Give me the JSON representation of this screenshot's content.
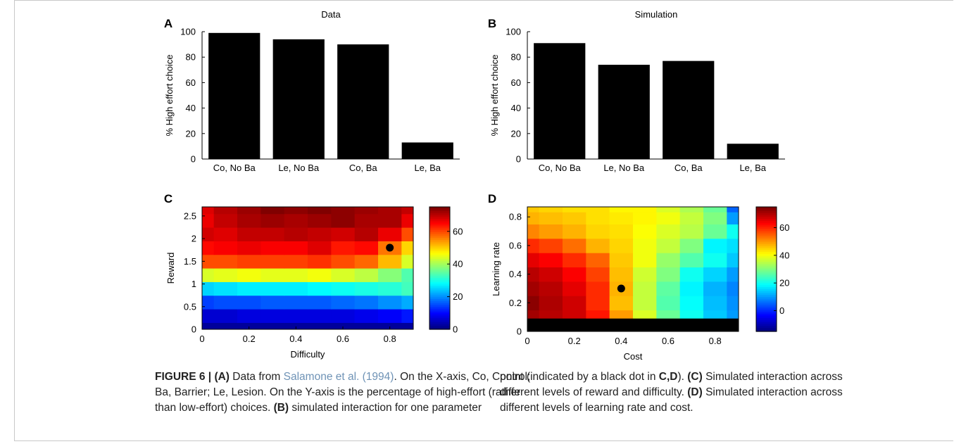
{
  "panels": {
    "A": {
      "letter": "A",
      "title": "Data"
    },
    "B": {
      "letter": "B",
      "title": "Simulation"
    },
    "C": {
      "letter": "C",
      "ylabel": "Reward",
      "xlabel": "Difficulty"
    },
    "D": {
      "letter": "D",
      "ylabel": "Learning rate",
      "xlabel": "Cost"
    }
  },
  "chart_data": [
    {
      "panel": "A",
      "type": "bar",
      "title": "Data",
      "categories": [
        "Co, No Ba",
        "Le, No Ba",
        "Co, Ba",
        "Le, Ba"
      ],
      "values": [
        99,
        94,
        90,
        13
      ],
      "ylabel": "% High effort choice",
      "ylim": [
        0,
        100
      ],
      "yticks": [
        0,
        20,
        40,
        60,
        80,
        100
      ],
      "color": "#000000"
    },
    {
      "panel": "B",
      "type": "bar",
      "title": "Simulation",
      "categories": [
        "Co, No Ba",
        "Le, No Ba",
        "Co, Ba",
        "Le, Ba"
      ],
      "values": [
        91,
        74,
        77,
        12
      ],
      "ylabel": "% High effort choice",
      "ylim": [
        0,
        100
      ],
      "yticks": [
        0,
        20,
        40,
        60,
        80,
        100
      ],
      "color": "#000000"
    },
    {
      "panel": "C",
      "type": "heatmap",
      "xlabel": "Difficulty",
      "ylabel": "Reward",
      "xlim": [
        0,
        0.9
      ],
      "ylim": [
        0,
        2.7
      ],
      "xticks": [
        0,
        0.2,
        0.4,
        0.6,
        0.8
      ],
      "xtick_labels": [
        "0",
        "0.2",
        "0.4",
        "0.6",
        "0.8"
      ],
      "yticks": [
        0,
        0.5,
        1,
        1.5,
        2,
        2.5
      ],
      "ytick_labels": [
        "0",
        "0.5",
        "1",
        "1.5",
        "2",
        "2.5"
      ],
      "colorbar": {
        "range": [
          0,
          75
        ],
        "ticks": [
          0,
          20,
          40,
          60
        ],
        "tick_labels": [
          "0",
          "20",
          "40",
          "60"
        ]
      },
      "marker": {
        "x": 0.8,
        "y": 1.8
      },
      "grid_x": [
        0,
        0.1,
        0.2,
        0.3,
        0.4,
        0.5,
        0.6,
        0.7,
        0.8,
        0.9
      ],
      "grid_y": [
        0,
        0.3,
        0.6,
        0.9,
        1.2,
        1.5,
        1.8,
        2.1,
        2.4,
        2.7
      ],
      "z": [
        [
          2,
          2,
          2,
          2,
          2,
          2,
          2,
          2,
          2,
          2
        ],
        [
          6,
          6,
          7,
          7,
          7,
          7,
          7,
          8,
          9,
          11
        ],
        [
          14,
          15,
          15,
          16,
          16,
          16,
          17,
          18,
          20,
          22
        ],
        [
          25,
          26,
          27,
          27,
          27,
          28,
          29,
          30,
          31,
          33
        ],
        [
          44,
          45,
          46,
          45,
          45,
          46,
          44,
          42,
          38,
          34
        ],
        [
          60,
          60,
          61,
          61,
          61,
          62,
          60,
          58,
          52,
          44
        ],
        [
          65,
          66,
          67,
          66,
          66,
          68,
          64,
          65,
          57,
          50
        ],
        [
          69,
          68,
          70,
          70,
          71,
          70,
          69,
          71,
          67,
          60
        ],
        [
          67,
          70,
          72,
          73,
          72,
          73,
          74,
          72,
          72,
          67
        ],
        [
          68,
          71,
          73,
          75,
          74,
          75,
          74,
          73,
          72,
          70
        ]
      ]
    },
    {
      "panel": "D",
      "type": "heatmap",
      "xlabel": "Cost",
      "ylabel": "Learning rate",
      "xlim": [
        0,
        0.9
      ],
      "ylim": [
        0,
        0.87
      ],
      "xticks": [
        0,
        0.2,
        0.4,
        0.6,
        0.8
      ],
      "xtick_labels": [
        "0",
        "0.2",
        "0.4",
        "0.6",
        "0.8"
      ],
      "yticks": [
        0,
        0.2,
        0.4,
        0.6,
        0.8
      ],
      "ytick_labels": [
        "0",
        "0.2",
        "0.4",
        "0.6",
        "0.8"
      ],
      "colorbar": {
        "range": [
          -15,
          75
        ],
        "ticks": [
          0,
          20,
          40,
          60
        ],
        "tick_labels": [
          "0",
          "20",
          "40",
          "60"
        ]
      },
      "marker": {
        "x": 0.4,
        "y": 0.3
      },
      "undefined_band_y": 0.09,
      "grid_x": [
        0,
        0.1,
        0.2,
        0.3,
        0.4,
        0.5,
        0.6,
        0.7,
        0.8,
        0.9
      ],
      "grid_y": [
        0.1,
        0.2,
        0.3,
        0.4,
        0.5,
        0.6,
        0.7,
        0.8,
        0.87
      ],
      "z": [
        [
          72,
          70,
          68,
          62,
          50,
          38,
          28,
          20,
          14,
          10
        ],
        [
          74,
          71,
          68,
          60,
          47,
          36,
          26,
          19,
          13,
          9
        ],
        [
          72,
          70,
          66,
          60,
          48,
          36,
          27,
          18,
          12,
          8
        ],
        [
          70,
          68,
          64,
          58,
          47,
          37,
          30,
          20,
          15,
          10
        ],
        [
          66,
          64,
          60,
          55,
          46,
          40,
          32,
          26,
          20,
          14
        ],
        [
          60,
          58,
          54,
          48,
          45,
          40,
          36,
          30,
          18,
          16
        ],
        [
          52,
          50,
          48,
          45,
          44,
          41,
          38,
          35,
          28,
          20
        ],
        [
          48,
          47,
          46,
          44,
          43,
          42,
          40,
          36,
          30,
          10
        ],
        [
          46,
          45,
          44,
          44,
          42,
          42,
          38,
          34,
          28,
          5
        ]
      ]
    }
  ],
  "caption": {
    "prefix": "FIGURE 6 | ",
    "seg1_bold": "(A)",
    "seg2": " Data from ",
    "seg3_link": "Salamone et al. (1994)",
    "seg4": ". On the X-axis, Co, Control; Ba, Barrier; Le, Lesion. On the Y-axis is the percentage of high-effort (rather than low-effort) choices. ",
    "seg5_bold": "(B)",
    "seg6": " simulated interaction for one parameter",
    "seg7": "point (indicated by a black dot in ",
    "seg8_bold": "C,D",
    "seg9": "). ",
    "seg10_bold": "(C)",
    "seg11": " Simulated interaction across different levels of reward and difficulty. ",
    "seg12_bold": "(D)",
    "seg13": " Simulated interaction across different levels of learning rate and cost."
  }
}
